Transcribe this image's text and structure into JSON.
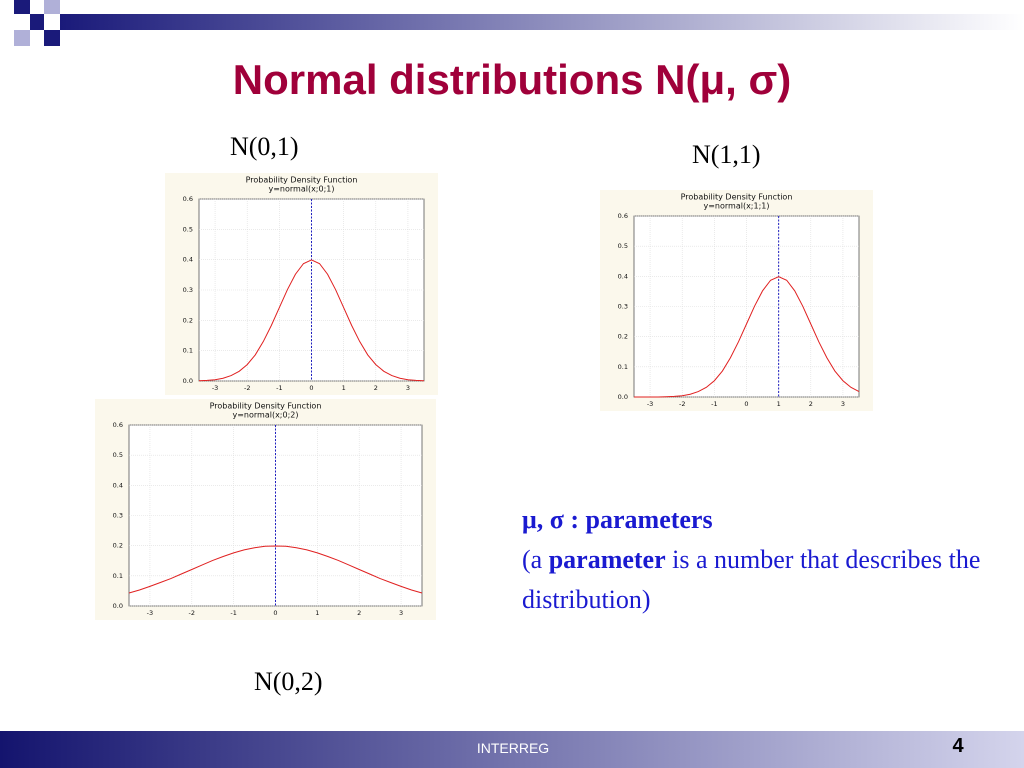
{
  "slide": {
    "title": "Normal distributions N(μ, σ)",
    "note": {
      "line1": "μ, σ : parameters",
      "open": "(a ",
      "bold": "parameter",
      "rest": " is a number that describes the distribution)"
    },
    "footer": "INTERREG",
    "page": "4"
  },
  "chart_data": [
    {
      "type": "line",
      "label": "N(0,1)",
      "title": "Probability Density Function",
      "subtitle": "y=normal(x;0;1)",
      "x": [
        -3.5,
        -3.25,
        -3,
        -2.75,
        -2.5,
        -2.25,
        -2,
        -1.75,
        -1.5,
        -1.25,
        -1,
        -0.75,
        -0.5,
        -0.25,
        0,
        0.25,
        0.5,
        0.75,
        1,
        1.25,
        1.5,
        1.75,
        2,
        2.25,
        2.5,
        2.75,
        3,
        3.25,
        3.5
      ],
      "values": [
        0.001,
        0.002,
        0.004,
        0.009,
        0.018,
        0.032,
        0.054,
        0.086,
        0.13,
        0.183,
        0.242,
        0.301,
        0.352,
        0.387,
        0.399,
        0.387,
        0.352,
        0.301,
        0.242,
        0.183,
        0.13,
        0.086,
        0.054,
        0.032,
        0.018,
        0.009,
        0.004,
        0.002,
        0.001
      ],
      "color": "#e02020",
      "vline": 0,
      "vline_color": "#2020c0",
      "xlim": [
        -3.5,
        3.5
      ],
      "xticks": [
        -3,
        -2,
        -1,
        0,
        1,
        2,
        3
      ],
      "ylim": [
        0,
        0.6
      ],
      "yticks": [
        {
          "value": 0,
          "label": "0.0"
        },
        0.1,
        0.2,
        0.3,
        0.4,
        0.5,
        0.6
      ],
      "grid": true
    },
    {
      "type": "line",
      "label": "N(1,1)",
      "title": "Probability Density Function",
      "subtitle": "y=normal(x;1;1)",
      "x": [
        -3.5,
        -3.25,
        -3,
        -2.75,
        -2.5,
        -2.25,
        -2,
        -1.75,
        -1.5,
        -1.25,
        -1,
        -0.75,
        -0.5,
        -0.25,
        0,
        0.25,
        0.5,
        0.75,
        1,
        1.25,
        1.5,
        1.75,
        2,
        2.25,
        2.5,
        2.75,
        3,
        3.25,
        3.5
      ],
      "values": [
        0.0,
        0.0,
        0.0,
        0.0,
        0.001,
        0.002,
        0.004,
        0.009,
        0.018,
        0.032,
        0.054,
        0.086,
        0.13,
        0.183,
        0.242,
        0.301,
        0.352,
        0.387,
        0.399,
        0.387,
        0.352,
        0.301,
        0.242,
        0.183,
        0.13,
        0.086,
        0.054,
        0.032,
        0.018
      ],
      "color": "#e02020",
      "vline": 1,
      "vline_color": "#2020c0",
      "xlim": [
        -3.5,
        3.5
      ],
      "xticks": [
        -3,
        -2,
        -1,
        0,
        1,
        2,
        3
      ],
      "ylim": [
        0,
        0.6
      ],
      "yticks": [
        {
          "value": 0,
          "label": "0.0"
        },
        0.1,
        0.2,
        0.3,
        0.4,
        0.5,
        0.6
      ],
      "grid": true
    },
    {
      "type": "line",
      "label": "N(0,2)",
      "title": "Probability Density Function",
      "subtitle": "y=normal(x;0;2)",
      "x": [
        -3.5,
        -3.25,
        -3,
        -2.75,
        -2.5,
        -2.25,
        -2,
        -1.75,
        -1.5,
        -1.25,
        -1,
        -0.75,
        -0.5,
        -0.25,
        0,
        0.25,
        0.5,
        0.75,
        1,
        1.25,
        1.5,
        1.75,
        2,
        2.25,
        2.5,
        2.75,
        3,
        3.25,
        3.5
      ],
      "values": [
        0.043,
        0.053,
        0.065,
        0.078,
        0.091,
        0.106,
        0.121,
        0.136,
        0.151,
        0.164,
        0.176,
        0.186,
        0.193,
        0.198,
        0.199,
        0.198,
        0.193,
        0.186,
        0.176,
        0.164,
        0.151,
        0.136,
        0.121,
        0.106,
        0.091,
        0.078,
        0.065,
        0.053,
        0.043
      ],
      "color": "#e02020",
      "vline": 0,
      "vline_color": "#2020c0",
      "xlim": [
        -3.5,
        3.5
      ],
      "xticks": [
        -3,
        -2,
        -1,
        0,
        1,
        2,
        3
      ],
      "ylim": [
        0,
        0.6
      ],
      "yticks": [
        {
          "value": 0,
          "label": "0.0"
        },
        0.1,
        0.2,
        0.3,
        0.4,
        0.5,
        0.6
      ],
      "grid": true
    }
  ]
}
